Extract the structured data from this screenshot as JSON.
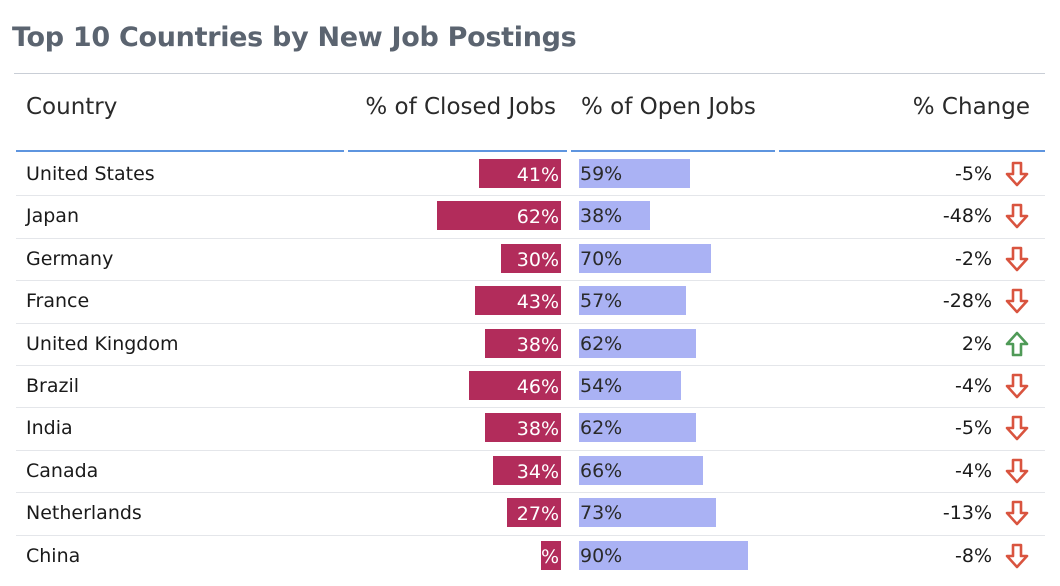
{
  "title": "Top 10 Countries by New Job Postings",
  "headers": {
    "country": "Country",
    "closed": "% of Closed Jobs",
    "open": "% of Open Jobs",
    "change": "% Change"
  },
  "colors": {
    "closed_bar": "#b22c5b",
    "open_bar": "#aab2f4",
    "down_arrow": "#d9543f",
    "up_arrow": "#4f9a57",
    "header_rule": "#5e95df"
  },
  "chart_data": {
    "type": "table",
    "title": "Top 10 Countries by New Job Postings",
    "columns": [
      "Country",
      "% of Closed Jobs",
      "% of Open Jobs",
      "% Change"
    ],
    "rows": [
      {
        "country": "United States",
        "closed": 41,
        "closed_label": "41%",
        "open": 59,
        "open_label": "59%",
        "change": -5,
        "change_label": "-5%",
        "direction": "down"
      },
      {
        "country": "Japan",
        "closed": 62,
        "closed_label": "62%",
        "open": 38,
        "open_label": "38%",
        "change": -48,
        "change_label": "-48%",
        "direction": "down"
      },
      {
        "country": "Germany",
        "closed": 30,
        "closed_label": "30%",
        "open": 70,
        "open_label": "70%",
        "change": -2,
        "change_label": "-2%",
        "direction": "down"
      },
      {
        "country": "France",
        "closed": 43,
        "closed_label": "43%",
        "open": 57,
        "open_label": "57%",
        "change": -28,
        "change_label": "-28%",
        "direction": "down"
      },
      {
        "country": "United Kingdom",
        "closed": 38,
        "closed_label": "38%",
        "open": 62,
        "open_label": "62%",
        "change": 2,
        "change_label": "2%",
        "direction": "up"
      },
      {
        "country": "Brazil",
        "closed": 46,
        "closed_label": "46%",
        "open": 54,
        "open_label": "54%",
        "change": -4,
        "change_label": "-4%",
        "direction": "down"
      },
      {
        "country": "India",
        "closed": 38,
        "closed_label": "38%",
        "open": 62,
        "open_label": "62%",
        "change": -5,
        "change_label": "-5%",
        "direction": "down"
      },
      {
        "country": "Canada",
        "closed": 34,
        "closed_label": "34%",
        "open": 66,
        "open_label": "66%",
        "change": -4,
        "change_label": "-4%",
        "direction": "down"
      },
      {
        "country": "Netherlands",
        "closed": 27,
        "closed_label": "27%",
        "open": 73,
        "open_label": "73%",
        "change": -13,
        "change_label": "-13%",
        "direction": "down"
      },
      {
        "country": "China",
        "closed": 10,
        "closed_label": "%",
        "open": 90,
        "open_label": "90%",
        "change": -8,
        "change_label": "-8%",
        "direction": "down"
      }
    ]
  }
}
